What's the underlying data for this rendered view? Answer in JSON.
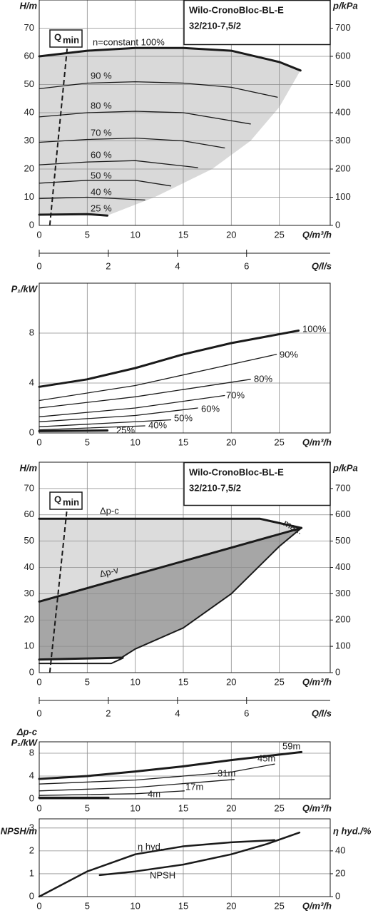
{
  "chart_data": [
    {
      "type": "line",
      "title": "Wilo-CronoBloc-BL-E",
      "subtitle": "32/210-7,5/2",
      "xlabel": "Q/m³/h",
      "ylabel": "H/m",
      "y2label": "p/kPa",
      "xlim": [
        0,
        30.3
      ],
      "ylim": [
        0,
        80
      ],
      "y2lim": [
        0,
        800
      ],
      "xticks": [
        0,
        5,
        10,
        15,
        20,
        25
      ],
      "yticks": [
        0,
        10,
        20,
        30,
        40,
        50,
        60,
        70
      ],
      "y2ticks": [
        0,
        100,
        200,
        300,
        400,
        500,
        600,
        700
      ],
      "grid": true,
      "areas": [
        {
          "color": "#d9d9d9",
          "x": [
            0,
            5,
            10,
            15,
            20,
            25,
            27.2,
            25,
            22,
            18,
            12,
            7.1,
            5,
            0
          ],
          "values": [
            60,
            62,
            63,
            63,
            62,
            58,
            55,
            42,
            30,
            20,
            10,
            3.5,
            4,
            3.8
          ]
        }
      ],
      "qmin": {
        "label": "Q",
        "label_sub": "min",
        "x": [
          1.1,
          3.0
        ],
        "values": [
          0,
          66
        ]
      },
      "series": [
        {
          "name": "n=constant 100%",
          "color": "#1a1a1a",
          "width": 3,
          "x": [
            0,
            5,
            10,
            15,
            20,
            25,
            27.2
          ],
          "values": [
            60,
            62,
            63,
            63,
            62,
            58,
            55
          ]
        },
        {
          "name": "90 %",
          "color": "#1a1a1a",
          "width": 1.3,
          "x": [
            0,
            5,
            10,
            15,
            20,
            24.8
          ],
          "values": [
            48.5,
            50.5,
            51,
            50.5,
            49,
            45.5
          ]
        },
        {
          "name": "80 %",
          "color": "#1a1a1a",
          "width": 1.3,
          "x": [
            0,
            5,
            10,
            15,
            22
          ],
          "values": [
            38.5,
            40,
            40.5,
            40,
            36
          ]
        },
        {
          "name": "70 %",
          "color": "#1a1a1a",
          "width": 1.3,
          "x": [
            0,
            5,
            10,
            15,
            19.3
          ],
          "values": [
            29.5,
            30.5,
            31,
            30,
            27.5
          ]
        },
        {
          "name": "60 %",
          "color": "#1a1a1a",
          "width": 1.3,
          "x": [
            0,
            5,
            10,
            16.5
          ],
          "values": [
            21.5,
            22.5,
            23,
            20.5
          ]
        },
        {
          "name": "50 %",
          "color": "#1a1a1a",
          "width": 1.3,
          "x": [
            0,
            5,
            10,
            13.7
          ],
          "values": [
            15,
            16,
            16,
            14
          ]
        },
        {
          "name": "40 %",
          "color": "#1a1a1a",
          "width": 1.3,
          "x": [
            0,
            5,
            11
          ],
          "values": [
            9.5,
            10,
            9
          ]
        },
        {
          "name": "25 %",
          "color": "#1a1a1a",
          "width": 3,
          "x": [
            0,
            5,
            7.1
          ],
          "values": [
            3.8,
            4,
            3.5
          ]
        }
      ]
    },
    {
      "type": "axis",
      "xlabel": "Q/l/s",
      "xlim": [
        0,
        8.42
      ],
      "xticks": [
        0,
        2,
        4,
        6
      ]
    },
    {
      "type": "line",
      "xlabel": "Q/m³/h",
      "ylabel": "P₁/kW",
      "xlim": [
        0,
        30.3
      ],
      "ylim": [
        0,
        12
      ],
      "xticks": [
        0,
        5,
        10,
        15,
        20,
        25
      ],
      "yticks": [
        0,
        4,
        8
      ],
      "grid": true,
      "series": [
        {
          "name": "100%",
          "color": "#1a1a1a",
          "width": 3,
          "x": [
            0,
            5,
            10,
            15,
            20,
            27
          ],
          "values": [
            3.7,
            4.3,
            5.2,
            6.3,
            7.2,
            8.2
          ]
        },
        {
          "name": "90%",
          "color": "#1a1a1a",
          "width": 1.3,
          "x": [
            0,
            10,
            24.7
          ],
          "values": [
            2.6,
            3.8,
            6.3
          ]
        },
        {
          "name": "80%",
          "color": "#1a1a1a",
          "width": 1.3,
          "x": [
            0,
            10,
            22
          ],
          "values": [
            2.0,
            2.9,
            4.3
          ]
        },
        {
          "name": "70%",
          "color": "#1a1a1a",
          "width": 1.3,
          "x": [
            0,
            10,
            19.3
          ],
          "values": [
            1.3,
            2.0,
            3.0
          ]
        },
        {
          "name": "60%",
          "color": "#1a1a1a",
          "width": 1.3,
          "x": [
            0,
            10,
            16.5
          ],
          "values": [
            0.9,
            1.4,
            2.0
          ]
        },
        {
          "name": "50%",
          "color": "#1a1a1a",
          "width": 1.3,
          "x": [
            0,
            13.7
          ],
          "values": [
            0.5,
            1.05
          ]
        },
        {
          "name": "40%",
          "color": "#1a1a1a",
          "width": 1.3,
          "x": [
            0,
            11
          ],
          "values": [
            0.25,
            0.57
          ]
        },
        {
          "name": "25%",
          "color": "#1a1a1a",
          "width": 3,
          "x": [
            0,
            7.1
          ],
          "values": [
            0.15,
            0.2
          ]
        }
      ]
    },
    {
      "type": "line",
      "title": "Wilo-CronoBloc-BL-E",
      "subtitle": "32/210-7,5/2",
      "xlabel": "Q/m³/h",
      "ylabel": "H/m",
      "y2label": "p/kPa",
      "xlim": [
        0,
        30.3
      ],
      "ylim": [
        0,
        80
      ],
      "y2lim": [
        0,
        800
      ],
      "xticks": [
        0,
        5,
        10,
        15,
        20,
        25
      ],
      "yticks": [
        0,
        10,
        20,
        30,
        40,
        50,
        60,
        70
      ],
      "y2ticks": [
        0,
        100,
        200,
        300,
        400,
        500,
        600,
        700
      ],
      "grid": true,
      "areas": [
        {
          "color": "#dcdcdc",
          "x": [
            0,
            23,
            27.3,
            0
          ],
          "values": [
            58.5,
            58.5,
            55,
            27
          ]
        },
        {
          "color": "#a6a6a6",
          "x": [
            0,
            27.3,
            25,
            20,
            15,
            10,
            8.7,
            0
          ],
          "values": [
            27,
            55,
            48,
            30,
            17,
            9,
            6,
            5
          ]
        }
      ],
      "qmin": {
        "label": "Q",
        "label_sub": "min",
        "x": [
          1.1,
          3.0
        ],
        "values": [
          0,
          66
        ]
      },
      "series": [
        {
          "name": "Δp-c",
          "color": "#1a1a1a",
          "width": 3,
          "x": [
            0,
            23,
            27.3
          ],
          "values": [
            58.5,
            58.5,
            55
          ]
        },
        {
          "name": "Δp-v",
          "color": "#1a1a1a",
          "width": 3,
          "x": [
            0,
            27.3
          ],
          "values": [
            27,
            55
          ]
        },
        {
          "name": "max.",
          "color": "#1a1a1a",
          "width": 2,
          "x": [
            27.3,
            25,
            20,
            15,
            10,
            8.7
          ],
          "values": [
            55,
            48,
            30,
            17,
            9,
            6
          ]
        },
        {
          "color": "#1a1a1a",
          "width": 3,
          "x": [
            0,
            8.7
          ],
          "values": [
            5,
            5.7
          ]
        },
        {
          "color": "#1a1a1a",
          "width": 2,
          "x": [
            0,
            7.5,
            8.7
          ],
          "values": [
            3.5,
            3.5,
            5.5
          ]
        }
      ]
    },
    {
      "type": "axis",
      "xlabel": "Q/l/s",
      "xlim": [
        0,
        8.42
      ],
      "xticks": [
        0,
        2,
        4,
        6
      ]
    },
    {
      "type": "line",
      "xlabel": "Q/m³/h",
      "ylabel": [
        "Δp-c",
        "P₁/kW"
      ],
      "xlim": [
        0,
        30.3
      ],
      "ylim": [
        0,
        10
      ],
      "xticks": [
        0,
        5,
        10,
        15,
        20,
        25
      ],
      "yticks": [
        0,
        4,
        8
      ],
      "grid": true,
      "series": [
        {
          "name": "59m",
          "color": "#1a1a1a",
          "width": 3,
          "x": [
            0,
            5,
            10,
            15,
            20,
            27.3
          ],
          "values": [
            3.5,
            4.0,
            4.8,
            5.7,
            6.8,
            8.2
          ]
        },
        {
          "name": "45m",
          "color": "#1a1a1a",
          "width": 1.3,
          "x": [
            0,
            10,
            20,
            24.5
          ],
          "values": [
            2.6,
            3.3,
            4.7,
            6.1
          ]
        },
        {
          "name": "31m",
          "color": "#1a1a1a",
          "width": 1.3,
          "x": [
            0,
            10,
            20.3
          ],
          "values": [
            1.4,
            2.0,
            3.4
          ]
        },
        {
          "name": "17m",
          "color": "#1a1a1a",
          "width": 1.3,
          "x": [
            0,
            10,
            15.1
          ],
          "values": [
            0.6,
            0.9,
            1.4
          ]
        },
        {
          "name": "4m",
          "color": "#1a1a1a",
          "width": 3,
          "x": [
            0,
            7.2
          ],
          "values": [
            0.2,
            0.2
          ]
        }
      ]
    },
    {
      "type": "line",
      "xlabel": "Q/m³/h",
      "ylabel": "NPSH/m",
      "y2label": "η hyd./%",
      "xlim": [
        0,
        30.3
      ],
      "ylim": [
        0,
        3.4
      ],
      "y2lim": [
        0,
        68
      ],
      "xticks": [
        0,
        5,
        10,
        15,
        20,
        25
      ],
      "yticks": [
        0,
        1,
        2,
        3
      ],
      "y2ticks": [
        0,
        20,
        40
      ],
      "grid": true,
      "series": [
        {
          "name": "η hyd.",
          "axis": "y2",
          "color": "#1a1a1a",
          "width": 2.5,
          "x": [
            0,
            5,
            10,
            15,
            20,
            24.5
          ],
          "values": [
            0,
            22,
            37,
            44,
            47.5,
            49.4
          ]
        },
        {
          "name": "NPSH",
          "color": "#1a1a1a",
          "width": 2.5,
          "x": [
            6.3,
            10,
            15,
            20,
            23.7,
            27.1
          ],
          "values": [
            0.94,
            1.1,
            1.4,
            1.85,
            2.3,
            2.8
          ]
        }
      ]
    }
  ]
}
